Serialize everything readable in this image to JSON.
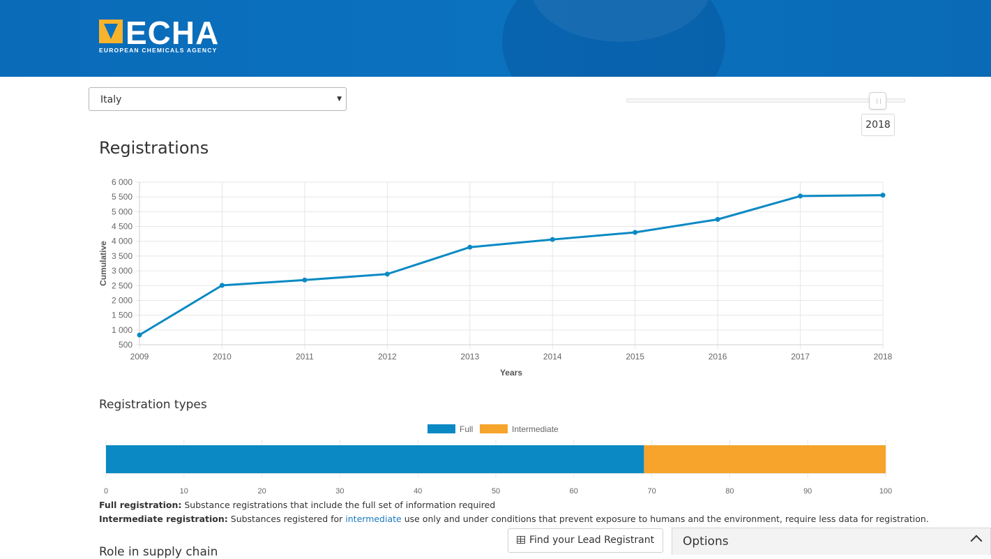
{
  "header": {
    "logo_text": "ECHA",
    "logo_sub": "EUROPEAN CHEMICALS AGENCY",
    "colors": {
      "brand_blue": "#0b72c0",
      "logo_yellow": "#f7b32b"
    }
  },
  "filters": {
    "country": "Italy",
    "year": "2018"
  },
  "registrations": {
    "title": "Registrations",
    "chart_data": {
      "type": "line",
      "title": "",
      "xlabel": "Years",
      "ylabel": "Cumulative",
      "x": [
        "2009",
        "2010",
        "2011",
        "2012",
        "2013",
        "2014",
        "2015",
        "2016",
        "2017",
        "2018"
      ],
      "series": [
        {
          "values": [
            830,
            2510,
            2690,
            2890,
            3800,
            4060,
            4300,
            4740,
            5530,
            5560
          ]
        }
      ],
      "ylim": [
        500,
        6000
      ],
      "yticks": [
        "500",
        "1 000",
        "1 500",
        "2 000",
        "2 500",
        "3 000",
        "3 500",
        "4 000",
        "4 500",
        "5 000",
        "5 500",
        "6 000"
      ],
      "grid": true,
      "line_color": "#0a89c4"
    }
  },
  "registration_types": {
    "title": "Registration types",
    "chart_data": {
      "type": "bar",
      "orientation": "horizontal-stacked",
      "series": [
        {
          "name": "Full",
          "values": [
            69
          ],
          "color": "#0a89c4"
        },
        {
          "name": "Intermediate",
          "values": [
            31
          ],
          "color": "#f6a42c"
        }
      ],
      "xlim": [
        0,
        100
      ],
      "xticks": [
        "0",
        "10",
        "20",
        "30",
        "40",
        "50",
        "60",
        "70",
        "80",
        "90",
        "100"
      ],
      "legend_position": "top-center"
    }
  },
  "notes": {
    "full_label": "Full registration:",
    "full_text": " Substance registrations that include the full set of information required",
    "intermediate_label": "Intermediate registration:",
    "intermediate_text_before": " Substances registered for ",
    "intermediate_link": "intermediate",
    "intermediate_text_after": " use only and under conditions that prevent exposure to humans and the environment, require less data for registration."
  },
  "next_section_title": "Role in supply chain",
  "footer": {
    "find_button": "Find your Lead Registrant",
    "options_label": "Options"
  }
}
